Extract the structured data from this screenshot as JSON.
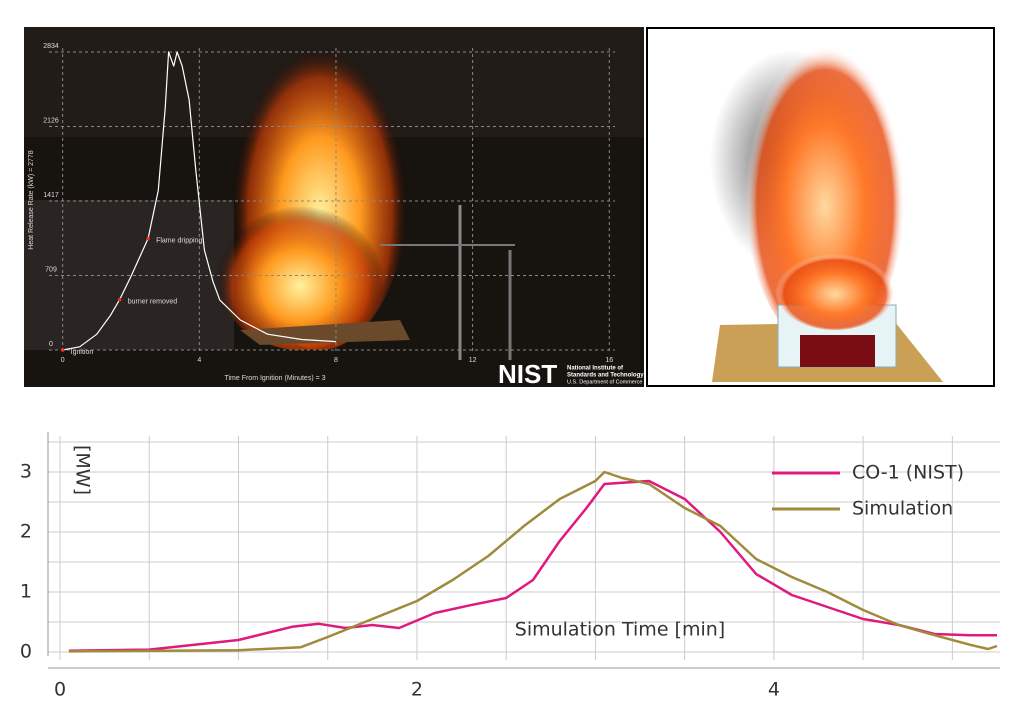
{
  "chart_data": [
    {
      "type": "line",
      "ylabel": "Heat Release Rate (kW) = 2778",
      "xlabel": "Time From Ignition (Minutes) = 3",
      "xlim": [
        -0.4,
        16.9
      ],
      "xticks": [
        0,
        4,
        8,
        12,
        16
      ],
      "ylim": [
        0,
        2834
      ],
      "yticks": [
        0,
        709,
        1417,
        2126,
        2834
      ],
      "grid": true,
      "series": [
        {
          "name": "Heat Release Rate",
          "color": "#ffffff",
          "x": [
            0,
            0.5,
            1.0,
            1.4,
            1.67,
            2.0,
            2.5,
            2.8,
            3.0,
            3.1,
            3.25,
            3.35,
            3.5,
            3.7,
            3.9,
            4.15,
            4.4,
            4.6,
            5.2,
            6.0,
            7.0,
            8.0
          ],
          "values": [
            0,
            30,
            150,
            330,
            480,
            700,
            1060,
            1520,
            2300,
            2834,
            2700,
            2834,
            2700,
            2380,
            1700,
            950,
            650,
            475,
            285,
            150,
            100,
            80
          ]
        }
      ],
      "annotations": [
        {
          "text": "Ignition",
          "x": 0,
          "y": 0
        },
        {
          "text": "burner removed",
          "x": 1.67,
          "y": 480
        },
        {
          "text": "Flame dripping",
          "x": 2.5,
          "y": 1060
        }
      ]
    },
    {
      "type": "line",
      "ylabel": "[MW]",
      "xlabel": "Simulation Time [min]",
      "xlim": [
        0,
        5.25
      ],
      "xticks": [
        0,
        2,
        4
      ],
      "xminor": [
        0.5,
        1,
        1.5,
        2.5,
        3,
        3.5,
        4.5,
        5
      ],
      "ylim": [
        0,
        3.6
      ],
      "yticks": [
        0,
        1,
        2,
        3
      ],
      "yminor": [
        0.5,
        1.5,
        2.5,
        3.5
      ],
      "grid": true,
      "legend": "upper right",
      "series": [
        {
          "name": "CO-1 (NIST)",
          "color": "#e0197d",
          "x": [
            0.05,
            0.5,
            1.0,
            1.3,
            1.45,
            1.6,
            1.75,
            1.9,
            2.1,
            2.3,
            2.5,
            2.65,
            2.8,
            2.95,
            3.05,
            3.15,
            3.3,
            3.5,
            3.7,
            3.9,
            4.1,
            4.3,
            4.5,
            4.7,
            4.9,
            5.1,
            5.25
          ],
          "values": [
            0.02,
            0.04,
            0.2,
            0.42,
            0.47,
            0.4,
            0.45,
            0.4,
            0.65,
            0.78,
            0.9,
            1.2,
            1.85,
            2.4,
            2.8,
            2.82,
            2.85,
            2.55,
            2.0,
            1.3,
            0.95,
            0.75,
            0.55,
            0.45,
            0.3,
            0.28,
            0.28
          ]
        },
        {
          "name": "Simulation",
          "color": "#a08a3c",
          "x": [
            0.05,
            1.0,
            1.35,
            1.5,
            1.75,
            2.0,
            2.2,
            2.4,
            2.6,
            2.8,
            3.0,
            3.05,
            3.15,
            3.3,
            3.5,
            3.7,
            3.9,
            4.1,
            4.3,
            4.5,
            4.7,
            4.9,
            5.1,
            5.2,
            5.25
          ],
          "values": [
            0.01,
            0.03,
            0.08,
            0.25,
            0.55,
            0.85,
            1.2,
            1.6,
            2.1,
            2.55,
            2.85,
            3.0,
            2.9,
            2.8,
            2.4,
            2.1,
            1.55,
            1.25,
            1.0,
            0.7,
            0.45,
            0.28,
            0.12,
            0.05,
            0.1
          ]
        }
      ]
    }
  ],
  "logo": {
    "mark": "NIST",
    "lines": [
      "National Institute of",
      "Standards and Technology",
      "U.S. Department of Commerce"
    ]
  }
}
